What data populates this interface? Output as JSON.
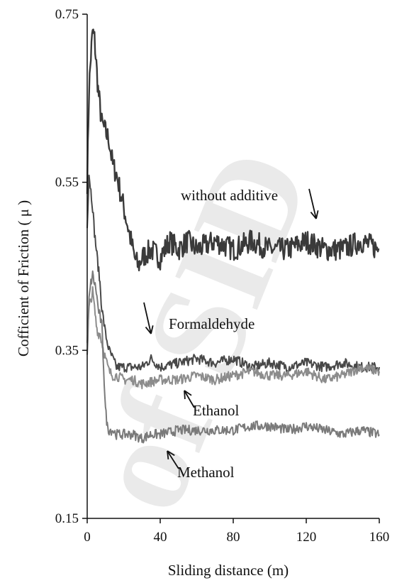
{
  "watermark": "of SID",
  "chart_data": {
    "type": "line",
    "xlabel": "Sliding distance (m)",
    "ylabel": "Cofficient of Friction ( μ )",
    "xlim": [
      0,
      160
    ],
    "ylim": [
      0.15,
      0.75
    ],
    "xticks": [
      0,
      40,
      80,
      120,
      160
    ],
    "yticks": [
      0.15,
      0.35,
      0.55,
      0.75
    ],
    "ytick_labels": [
      "0.15",
      "0.35",
      "0.55",
      "0.75"
    ],
    "grid": false,
    "legend": "none",
    "series": [
      {
        "name": "without additive",
        "color": "#3a3a3a",
        "x": [
          0,
          1,
          2,
          3,
          4,
          5,
          6,
          7,
          8,
          10,
          12,
          14,
          16,
          18,
          20,
          22,
          24,
          26,
          28,
          30,
          35,
          40,
          45,
          50,
          55,
          60,
          70,
          80,
          90,
          100,
          110,
          120,
          130,
          140,
          150,
          160
        ],
        "y": [
          0.55,
          0.66,
          0.7,
          0.73,
          0.72,
          0.69,
          0.66,
          0.64,
          0.62,
          0.61,
          0.6,
          0.57,
          0.56,
          0.54,
          0.52,
          0.5,
          0.48,
          0.46,
          0.45,
          0.46,
          0.47,
          0.46,
          0.48,
          0.47,
          0.48,
          0.47,
          0.48,
          0.47,
          0.48,
          0.47,
          0.47,
          0.48,
          0.47,
          0.47,
          0.48,
          0.47
        ]
      },
      {
        "name": "Formaldehyde",
        "color": "#484848",
        "x": [
          0,
          1,
          2,
          3,
          4,
          5,
          6,
          7,
          8,
          10,
          12,
          14,
          16,
          20,
          25,
          30,
          35,
          40,
          50,
          60,
          70,
          80,
          90,
          100,
          110,
          120,
          130,
          140,
          150,
          160
        ],
        "y": [
          0.5,
          0.56,
          0.54,
          0.52,
          0.49,
          0.47,
          0.45,
          0.43,
          0.4,
          0.37,
          0.35,
          0.34,
          0.33,
          0.33,
          0.33,
          0.33,
          0.34,
          0.33,
          0.335,
          0.34,
          0.335,
          0.34,
          0.33,
          0.335,
          0.33,
          0.335,
          0.33,
          0.335,
          0.33,
          0.33
        ]
      },
      {
        "name": "Ethanol",
        "color": "#8c8c8c",
        "x": [
          0,
          1,
          2,
          3,
          4,
          5,
          6,
          7,
          8,
          9,
          10,
          12,
          14,
          16,
          20,
          25,
          30,
          40,
          50,
          60,
          70,
          80,
          90,
          100,
          110,
          120,
          130,
          140,
          150,
          160
        ],
        "y": [
          0.36,
          0.4,
          0.41,
          0.42,
          0.4,
          0.38,
          0.37,
          0.37,
          0.36,
          0.35,
          0.34,
          0.325,
          0.32,
          0.32,
          0.315,
          0.315,
          0.31,
          0.315,
          0.315,
          0.32,
          0.315,
          0.32,
          0.325,
          0.32,
          0.32,
          0.325,
          0.315,
          0.32,
          0.33,
          0.325
        ]
      },
      {
        "name": "Methanol",
        "color": "#7a7a7a",
        "x": [
          0,
          1,
          2,
          3,
          4,
          5,
          6,
          7,
          8,
          9,
          10,
          11,
          12,
          14,
          16,
          20,
          25,
          30,
          35,
          40,
          50,
          60,
          70,
          80,
          90,
          100,
          110,
          120,
          130,
          140,
          150,
          160
        ],
        "y": [
          0.34,
          0.41,
          0.43,
          0.44,
          0.43,
          0.42,
          0.4,
          0.39,
          0.38,
          0.33,
          0.28,
          0.26,
          0.255,
          0.255,
          0.25,
          0.25,
          0.25,
          0.245,
          0.25,
          0.25,
          0.255,
          0.255,
          0.255,
          0.255,
          0.26,
          0.26,
          0.255,
          0.26,
          0.255,
          0.25,
          0.255,
          0.25
        ]
      }
    ],
    "annotations": [
      {
        "text": "without additive",
        "series": "without additive",
        "x": 125,
        "y": 0.48
      },
      {
        "text": "Formaldehyde",
        "series": "Formaldehyde",
        "x": 35,
        "y": 0.365
      },
      {
        "text": "Ethanol",
        "series": "Ethanol",
        "x": 53,
        "y": 0.31
      },
      {
        "text": "Methanol",
        "series": "Methanol",
        "x": 43,
        "y": 0.245
      }
    ]
  }
}
